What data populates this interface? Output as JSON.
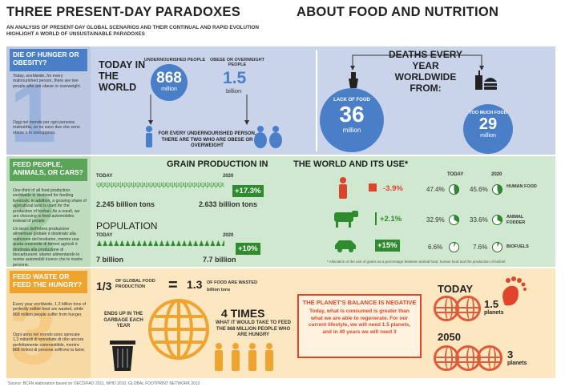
{
  "header": {
    "title_left": "THREE PRESENT-DAY PARADOXES",
    "title_right": "ABOUT FOOD AND NUTRITION",
    "subtitle": "AN ANALYSIS OF PRESENT-DAY GLOBAL SCENARIOS AND THEIR CONTINUAL AND RAPID EVOLUTION HIGHLIGHT A WORLD OF UNSUSTAINABLE PARADOXES"
  },
  "section1": {
    "heading": "DIE OF HUNGER OR OBESITY?",
    "number": "1",
    "text_en": "Today, worldwide, for every malnourished person, there are two people who are obese or overweight.",
    "text_it": "Oggi nel mondo per ogni persona malnutrita, ce ne sono due che sono obese o in sovrappeso.",
    "today_label": "TODAY IN THE WORLD",
    "undernourished_label": "UNDERNOURISHED PEOPLE",
    "undernourished_value": "868",
    "undernourished_unit": "million",
    "obese_label": "OBESE OR OVERWEIGHT PEOPLE",
    "obese_value": "1.5",
    "obese_unit": "billion",
    "ratio_text": "FOR EVERY UNDERNOURISHED PERSON, THERE ARE TWO WHO ARE OBESE OR OVERWEIGHT",
    "deaths_title": "DEATHS EVERY YEAR WORLDWIDE FROM:",
    "lack_label": "LACK OF FOOD",
    "lack_value": "36",
    "lack_unit": "million",
    "much_label": "TOO MUCH FOOD",
    "much_value": "29",
    "much_unit": "million"
  },
  "section2": {
    "heading": "FEED PEOPLE, ANIMALS, OR CARS?",
    "number": "2",
    "text_en": "One-third of all food production worldwide is destined for feeding livestock; in addition, a growing share of agricultural land is used for the production of biofuel. As a result, we are choosing to feed automobiles instead of people.",
    "text_it": "Un terzo dell'intera produzione alimentare globale è destinato alla nutrizione del bestiame, mentre una quota crescente di terreni agricoli è destinata alla produzione di biocarburanti: stiamo alimentando le nostre automobili invece che le nostre persone.",
    "grain_title": "GRAIN PRODUCTION IN",
    "world_title": "THE WORLD AND ITS USE*",
    "today_label": "TODAY",
    "year_2020": "2020",
    "grain_today": "2.245 billion tons",
    "grain_2020": "2.633 billion tons",
    "grain_change": "+17.3%",
    "population_title": "POPULATION",
    "pop_today": "7 billion",
    "pop_2020": "7.7 billion",
    "pop_change": "+10%",
    "uses": [
      {
        "change": "-3.9%",
        "today": "47.4%",
        "future": "45.6%",
        "label": "HUMAN FOOD",
        "icon": "person-icon"
      },
      {
        "change": "+2.1%",
        "today": "32.9%",
        "future": "33.6%",
        "label": "ANIMAL FODDER",
        "icon": "cow-icon"
      },
      {
        "change": "+15%",
        "today": "6.6%",
        "future": "7.6%",
        "label": "BIOFUELS",
        "icon": "car-icon"
      }
    ],
    "footnote": "* Allocation of the use of grains as a percentage between animal food, human food and the production of biofuel"
  },
  "section3": {
    "heading": "FEED WASTE OR FEED THE HUNGRY?",
    "number": "3",
    "text_en": "Every year worldwide, 1.3 billion tons of perfectly edible food are wasted, while 868 million people suffer from hunger.",
    "text_it": "Ogni anno nel mondo sono sprecate 1,3 miliardi di tonnellate di cibo ancora perfettamente commestibile, mentre 868 milioni di persone soffrono la fame.",
    "fraction": "1/3",
    "fraction_label": "OF GLOBAL FOOD PRODUCTION",
    "equals": "=",
    "wasted_value": "1.3",
    "wasted_label": "OF FOOD ARE WASTED",
    "wasted_unit": "billion tons",
    "garbage_text": "ENDS UP IN THE GARBAGE EACH YEAR",
    "times_value": "4 TIMES",
    "times_text": "WHAT IT WOULD TAKE TO FEED THE 868 MILLION PEOPLE WHO ARE HUNGRY",
    "balance_title": "THE PLANET'S BALANCE IS NEGATIVE",
    "balance_text": "Today, what is consumed is greater than what we are able to regenerate. For our current lifestyle, we will need 1.5 planets, and in 40 years we will need 3",
    "today_label": "TODAY",
    "today_planets": "1.5",
    "planets_word": "planets",
    "year_2050": "2050",
    "future_planets": "3"
  },
  "source": "Source: BCFN elaboration based on OECD/FAO 2011, WHO 2010, GLOBAL FOOTPRINT NETWORK 2012"
}
